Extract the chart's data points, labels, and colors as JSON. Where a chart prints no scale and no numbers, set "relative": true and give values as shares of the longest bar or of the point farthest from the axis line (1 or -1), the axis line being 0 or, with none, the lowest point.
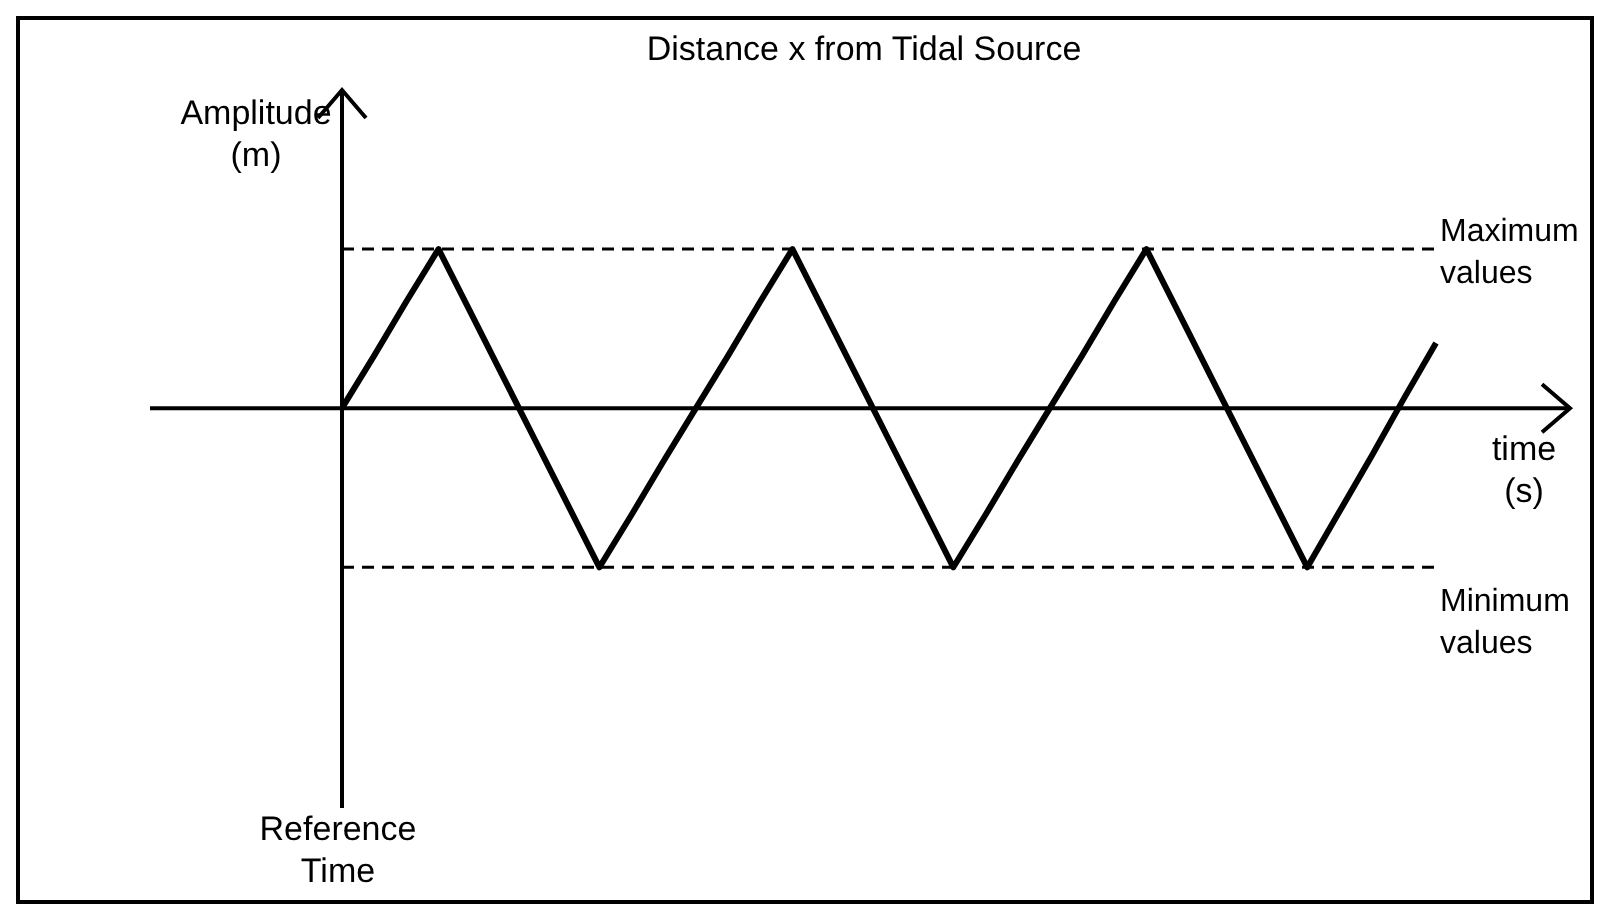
{
  "chart_data": {
    "type": "line",
    "title": "Distance x from Tidal Source",
    "xlabel": "time (s)",
    "ylabel": "Amplitude (m)",
    "relative": true,
    "categories": [
      null,
      null,
      null,
      null,
      null,
      null,
      null,
      null,
      null,
      null,
      null,
      null,
      null,
      null,
      null,
      null,
      null,
      null,
      null,
      null,
      null,
      null,
      null,
      null,
      null,
      null,
      null,
      null,
      null,
      null,
      null,
      null,
      null,
      null,
      null
    ],
    "series": [
      {
        "color": "#000000",
        "values": [
          0,
          0.33,
          0.67,
          1,
          0.6,
          0.2,
          -0.2,
          -0.6,
          -1,
          -0.67,
          -0.33,
          0,
          0.33,
          0.67,
          1,
          0.6,
          0.2,
          -0.2,
          -0.6,
          -1,
          -0.67,
          -0.33,
          0,
          0.33,
          0.67,
          1,
          0.6,
          0.2,
          -0.2,
          -0.6,
          -1,
          -0.65,
          -0.3,
          0.06,
          0.41
        ]
      }
    ],
    "ref_lines": [
      {
        "axis": "y",
        "value": 1,
        "label": "Maximum values",
        "line_style": "dashed",
        "color": "#000000"
      },
      {
        "axis": "y",
        "value": -1,
        "label": "Minimum values",
        "line_style": "dashed",
        "color": "#000000"
      }
    ],
    "annotations": [
      "Reference Time"
    ],
    "marker": "none"
  }
}
